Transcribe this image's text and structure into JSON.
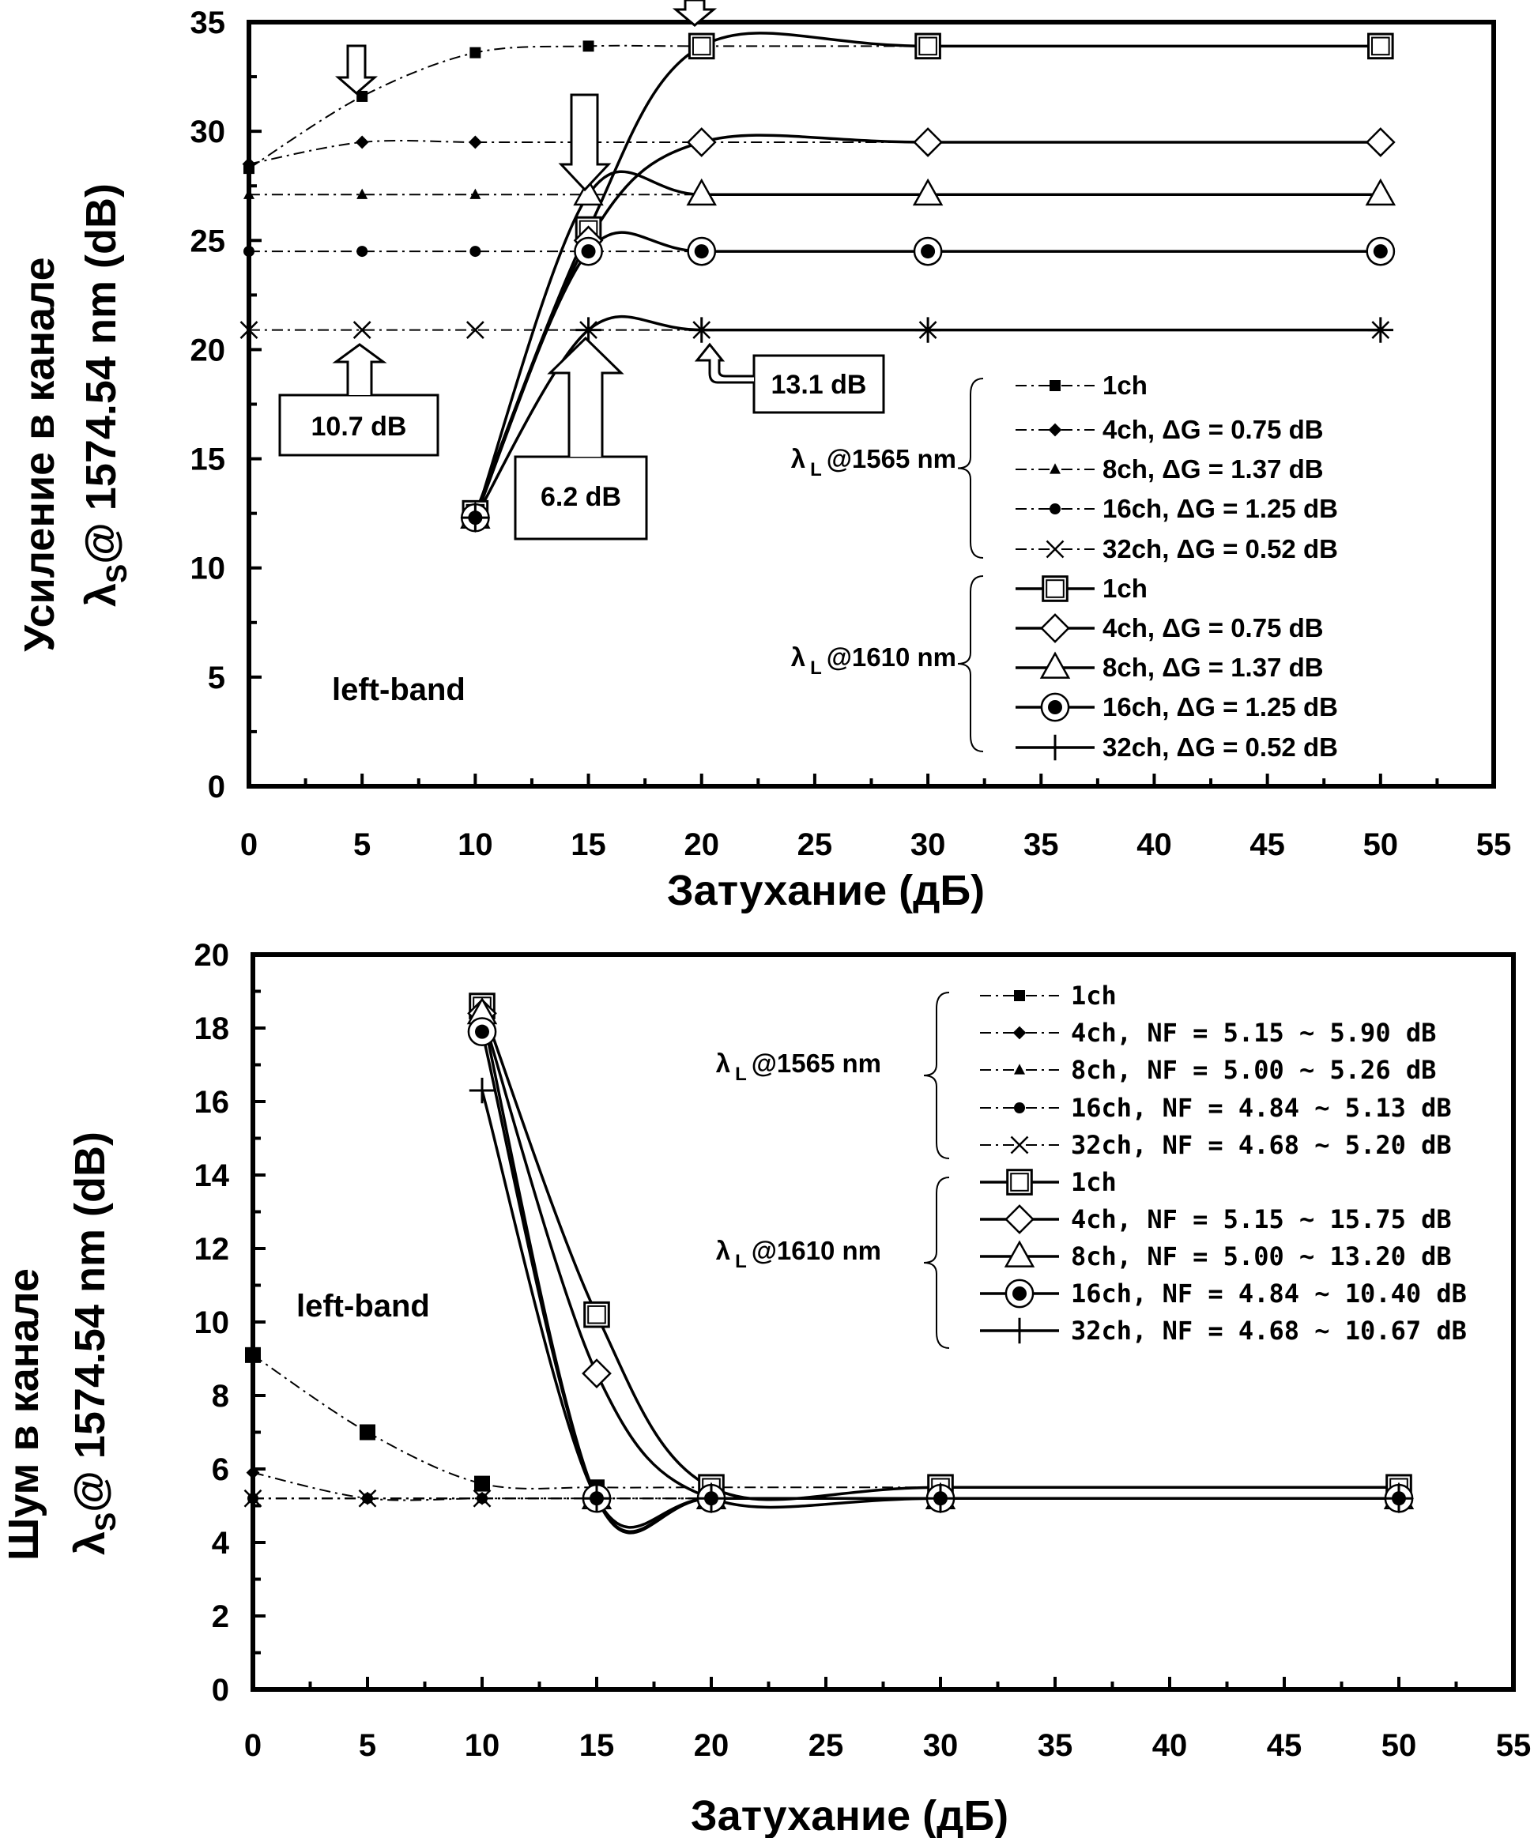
{
  "chart_data": [
    {
      "type": "line",
      "xlabel": "Затухание (дБ)",
      "ylabel_line1": "Усиление в канале",
      "ylabel_line2_symbol": "λ",
      "ylabel_line2_sub": "S",
      "ylabel_line2_rest": "@ 1574.54 nm  (dB)",
      "xlim": [
        0,
        55
      ],
      "ylim": [
        0,
        35
      ],
      "xticks": [
        "0",
        "5",
        "10",
        "15",
        "20",
        "25",
        "30",
        "35",
        "40",
        "45",
        "50",
        "55"
      ],
      "yticks": [
        "0",
        "5",
        "10",
        "15",
        "20",
        "25",
        "30",
        "35"
      ],
      "band_label": "left-band",
      "group_labels": [
        {
          "symbol": "λ",
          "sub": "L",
          "rest": "@1565 nm"
        },
        {
          "symbol": "λ",
          "sub": "L",
          "rest": "@1610 nm"
        }
      ],
      "series": [
        {
          "name": "1ch",
          "group": 0,
          "marker": "square-filled",
          "dash": "dashdot",
          "x": [
            0,
            5,
            10,
            15,
            20,
            30,
            50
          ],
          "y": [
            28.3,
            31.6,
            33.6,
            33.9,
            33.9,
            33.9,
            33.9
          ]
        },
        {
          "name": "4ch, ΔG = 0.75 dB",
          "group": 0,
          "marker": "diamond-filled",
          "dash": "dashdot",
          "x": [
            0,
            5,
            10,
            15,
            20,
            30,
            50
          ],
          "y": [
            28.5,
            29.5,
            29.5,
            29.5,
            29.5,
            29.5,
            29.5
          ]
        },
        {
          "name": "8ch, ΔG = 1.37 dB",
          "group": 0,
          "marker": "triangle-filled",
          "dash": "dashdot",
          "x": [
            0,
            5,
            10,
            15,
            20,
            30,
            50
          ],
          "y": [
            27.1,
            27.1,
            27.1,
            27.1,
            27.1,
            27.1,
            27.1
          ]
        },
        {
          "name": "16ch, ΔG = 1.25 dB",
          "group": 0,
          "marker": "circle-filled",
          "dash": "dashdot",
          "x": [
            0,
            5,
            10,
            15,
            20,
            30,
            50
          ],
          "y": [
            24.5,
            24.5,
            24.5,
            24.5,
            24.5,
            24.5,
            24.5
          ]
        },
        {
          "name": "32ch, ΔG = 0.52 dB",
          "group": 0,
          "marker": "x",
          "dash": "dashdot",
          "x": [
            0,
            5,
            10,
            15,
            20,
            30,
            50
          ],
          "y": [
            20.9,
            20.9,
            20.9,
            20.9,
            20.9,
            20.9,
            20.9
          ]
        },
        {
          "name": "1ch",
          "group": 1,
          "marker": "square-open",
          "dash": "solid",
          "x": [
            10,
            15,
            20,
            30,
            50
          ],
          "y": [
            12.5,
            25.5,
            33.9,
            33.9,
            33.9
          ]
        },
        {
          "name": "4ch, ΔG = 0.75 dB",
          "group": 1,
          "marker": "diamond-open",
          "dash": "solid",
          "x": [
            10,
            15,
            20,
            30,
            50
          ],
          "y": [
            12.3,
            25.0,
            29.5,
            29.5,
            29.5
          ]
        },
        {
          "name": "8ch, ΔG = 1.37 dB",
          "group": 1,
          "marker": "triangle-open",
          "dash": "solid",
          "x": [
            10,
            15,
            20,
            30,
            50
          ],
          "y": [
            12.3,
            27.1,
            27.1,
            27.1,
            27.1
          ]
        },
        {
          "name": "16ch, ΔG = 1.25 dB",
          "group": 1,
          "marker": "circle-open",
          "dash": "solid",
          "x": [
            10,
            15,
            20,
            30,
            50
          ],
          "y": [
            12.3,
            24.5,
            24.5,
            24.5,
            24.5
          ]
        },
        {
          "name": "32ch, ΔG = 0.52 dB",
          "group": 1,
          "marker": "plus",
          "dash": "solid",
          "x": [
            10,
            15,
            20,
            30,
            50
          ],
          "y": [
            12.3,
            20.9,
            20.9,
            20.9,
            20.9
          ]
        }
      ],
      "annotations": [
        "10.7 dB",
        "6.2 dB",
        "13.1 dB"
      ]
    },
    {
      "type": "line",
      "xlabel": "Затухание (дБ)",
      "ylabel_line1": "Шум в канале",
      "ylabel_line2_symbol": "λ",
      "ylabel_line2_sub": "S",
      "ylabel_line2_rest": "@ 1574.54 nm (dB)",
      "xlim": [
        0,
        55
      ],
      "ylim": [
        0,
        20
      ],
      "xticks": [
        "0",
        "5",
        "10",
        "15",
        "20",
        "25",
        "30",
        "35",
        "40",
        "45",
        "50",
        "55"
      ],
      "yticks": [
        "0",
        "2",
        "4",
        "6",
        "8",
        "10",
        "12",
        "14",
        "16",
        "18",
        "20"
      ],
      "band_label": "left-band",
      "group_labels": [
        {
          "symbol": "λ",
          "sub": "L",
          "rest": "@1565 nm"
        },
        {
          "symbol": "λ",
          "sub": "L",
          "rest": "@1610 nm"
        }
      ],
      "series": [
        {
          "name": "1ch",
          "group": 0,
          "marker": "square-filled",
          "dash": "dashdot",
          "x": [
            0,
            5,
            10,
            15,
            20,
            30,
            50
          ],
          "y": [
            9.1,
            7.0,
            5.6,
            5.5,
            5.5,
            5.5,
            5.5
          ]
        },
        {
          "name": "4ch, NF = 5.15 ~ 5.90 dB",
          "group": 0,
          "marker": "diamond-filled",
          "dash": "dashdot",
          "x": [
            0,
            5,
            10,
            15,
            20,
            30,
            50
          ],
          "y": [
            5.9,
            5.2,
            5.2,
            5.2,
            5.2,
            5.2,
            5.2
          ]
        },
        {
          "name": "8ch, NF = 5.00 ~ 5.26 dB",
          "group": 0,
          "marker": "triangle-filled",
          "dash": "dashdot",
          "x": [
            0,
            5,
            10,
            15,
            20,
            30,
            50
          ],
          "y": [
            5.2,
            5.2,
            5.2,
            5.2,
            5.2,
            5.2,
            5.2
          ]
        },
        {
          "name": "16ch, NF = 4.84 ~ 5.13 dB",
          "group": 0,
          "marker": "circle-filled",
          "dash": "dashdot",
          "x": [
            0,
            5,
            10,
            15,
            20,
            30,
            50
          ],
          "y": [
            5.2,
            5.2,
            5.2,
            5.2,
            5.2,
            5.2,
            5.2
          ]
        },
        {
          "name": "32ch, NF = 4.68 ~ 5.20 dB",
          "group": 0,
          "marker": "x",
          "dash": "dashdot",
          "x": [
            0,
            5,
            10,
            15,
            20,
            30,
            50
          ],
          "y": [
            5.2,
            5.2,
            5.2,
            5.2,
            5.2,
            5.2,
            5.2
          ]
        },
        {
          "name": "1ch",
          "group": 1,
          "marker": "square-open",
          "dash": "solid",
          "x": [
            10,
            15,
            20,
            30,
            50
          ],
          "y": [
            18.6,
            10.2,
            5.5,
            5.5,
            5.5
          ]
        },
        {
          "name": "4ch, NF = 5.15 ~ 15.75 dB",
          "group": 1,
          "marker": "diamond-open",
          "dash": "solid",
          "x": [
            10,
            15,
            20,
            30,
            50
          ],
          "y": [
            18.4,
            8.6,
            5.2,
            5.2,
            5.2
          ]
        },
        {
          "name": "8ch, NF = 5.00 ~ 13.20 dB",
          "group": 1,
          "marker": "triangle-open",
          "dash": "solid",
          "x": [
            10,
            15,
            20,
            30,
            50
          ],
          "y": [
            18.4,
            5.2,
            5.2,
            5.2,
            5.2
          ]
        },
        {
          "name": "16ch, NF = 4.84 ~ 10.40 dB",
          "group": 1,
          "marker": "circle-open",
          "dash": "solid",
          "x": [
            10,
            15,
            20,
            30,
            50
          ],
          "y": [
            17.9,
            5.2,
            5.2,
            5.2,
            5.2
          ]
        },
        {
          "name": "32ch, NF = 4.68 ~ 10.67 dB",
          "group": 1,
          "marker": "plus",
          "dash": "solid",
          "x": [
            10,
            15,
            20,
            30,
            50
          ],
          "y": [
            16.3,
            5.2,
            5.2,
            5.2,
            5.2
          ]
        }
      ]
    }
  ]
}
